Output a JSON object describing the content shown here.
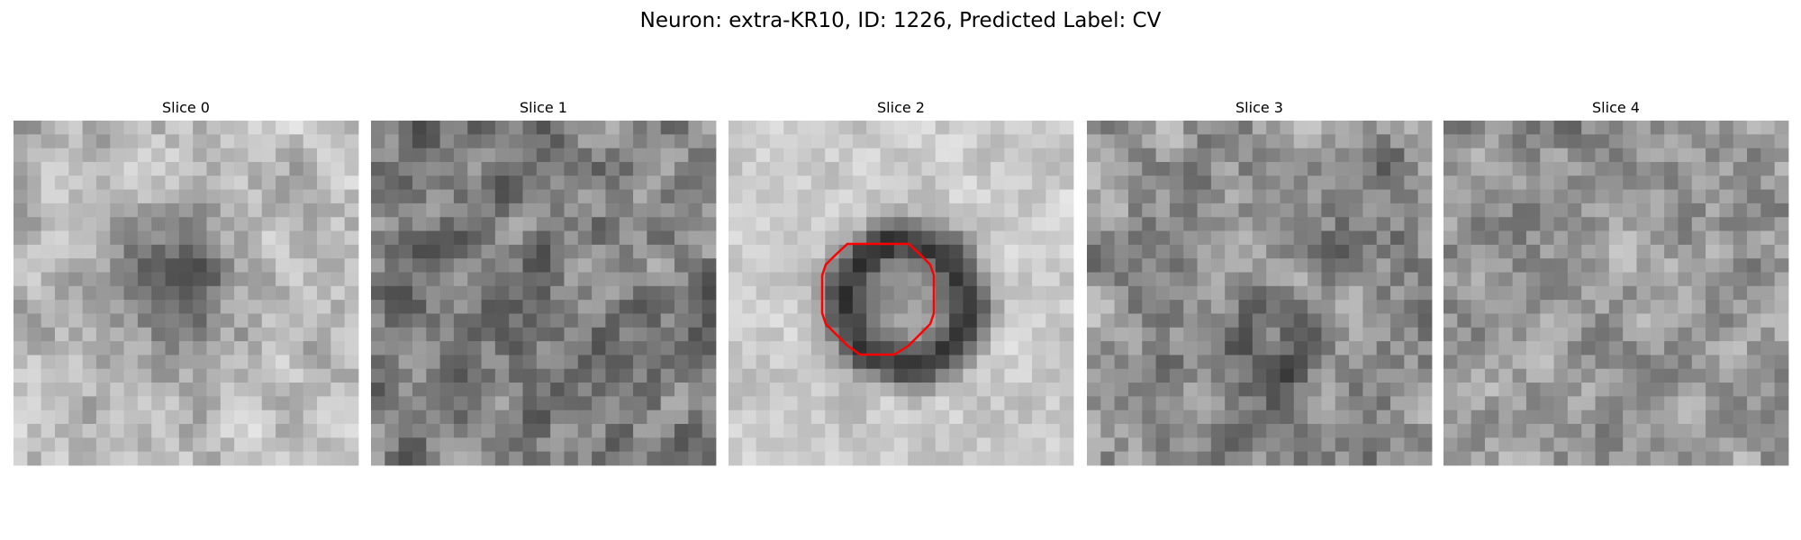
{
  "title": "Neuron: extra-KR10, ID: 1226, Predicted Label: CV",
  "panels": [
    {
      "title": "Slice 0"
    },
    {
      "title": "Slice 1"
    },
    {
      "title": "Slice 2"
    },
    {
      "title": "Slice 3"
    },
    {
      "title": "Slice 4"
    }
  ]
}
